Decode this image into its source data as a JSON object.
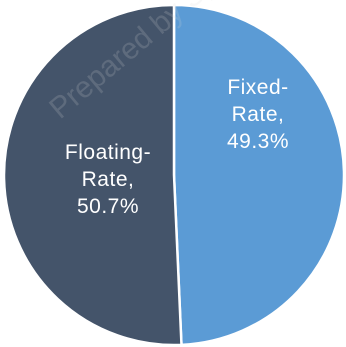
{
  "chart_data": {
    "type": "pie",
    "slices": [
      {
        "label_line1": "Fixed-",
        "label_line2": "Rate,",
        "percent_label": "49.3%",
        "value": 49.3
      },
      {
        "label_line1": "Floating-",
        "label_line2": "Rate,",
        "percent_label": "50.7%",
        "value": 50.7
      }
    ],
    "colors": [
      "#5b9bd5",
      "#44546a"
    ],
    "label_color": "#ffffff",
    "separator_color": "#ffffff",
    "watermark_text": "Prepared by Syndicate"
  }
}
